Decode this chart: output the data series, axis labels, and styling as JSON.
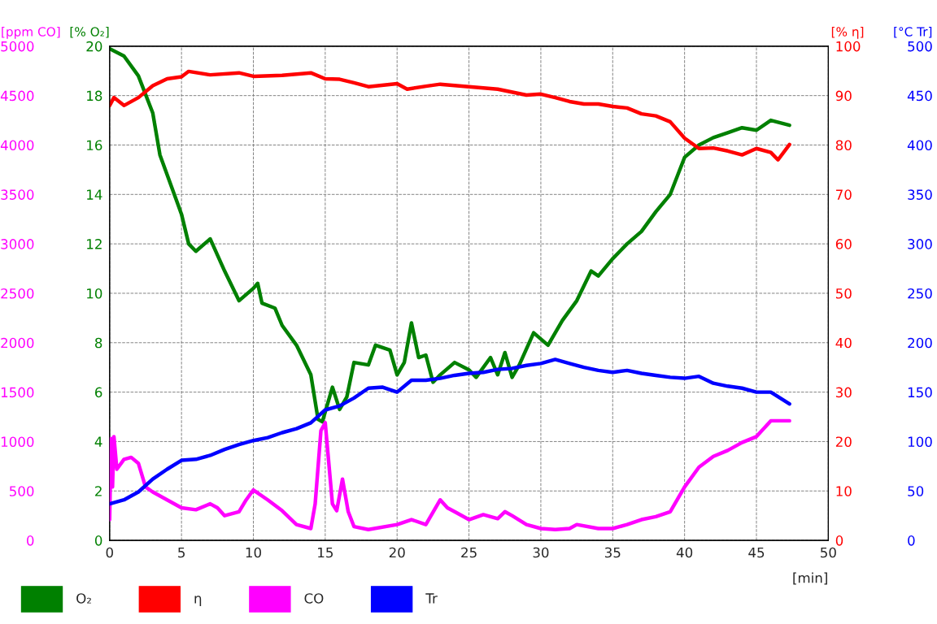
{
  "chart_data": [
    {
      "type": "line",
      "ylabel": "[% O₂]",
      "y2label": "[% η]",
      "xlabel": "[min]",
      "xlim": [
        0,
        50
      ],
      "xticks": [
        0,
        5,
        10,
        15,
        20,
        25,
        30,
        35,
        40,
        45,
        50
      ],
      "ylim": [
        0,
        20
      ],
      "yticks": [
        0,
        2,
        4,
        6,
        8,
        10,
        12,
        14,
        16,
        18,
        20
      ],
      "y2lim": [
        0,
        100
      ],
      "y2ticks": [
        0,
        10,
        20,
        30,
        40,
        50,
        60,
        70,
        80,
        90,
        100
      ],
      "grid": true,
      "legend": "bottom",
      "line_style": "solid",
      "series": [
        {
          "name": "O₂",
          "color": "#008000",
          "x": [
            0,
            1,
            2,
            3,
            3.5,
            4,
            5,
            5.5,
            6,
            7,
            8,
            9,
            10,
            10.3,
            10.6,
            11.5,
            12,
            13,
            14,
            14.5,
            14.8,
            15.5,
            16,
            16.5,
            17,
            18,
            18.5,
            19.5,
            20,
            20.5,
            21,
            21.5,
            22,
            22.5,
            23,
            24,
            25,
            25.5,
            26.5,
            27,
            27.5,
            28,
            28.5,
            29.5,
            30.5,
            31.5,
            32.5,
            33.5,
            34,
            35,
            36,
            37,
            38,
            39,
            40,
            41,
            42,
            43,
            44,
            45,
            46,
            47.3
          ],
          "values": [
            19.9,
            19.6,
            18.8,
            17.3,
            15.6,
            14.8,
            13.2,
            12.0,
            11.7,
            12.2,
            10.9,
            9.7,
            10.2,
            10.4,
            9.6,
            9.4,
            8.7,
            7.9,
            6.7,
            4.9,
            4.8,
            6.2,
            5.3,
            5.8,
            7.2,
            7.1,
            7.9,
            7.7,
            6.7,
            7.2,
            8.8,
            7.4,
            7.5,
            6.4,
            6.7,
            7.2,
            6.9,
            6.6,
            7.4,
            6.7,
            7.6,
            6.6,
            7.1,
            8.4,
            7.9,
            8.9,
            9.7,
            10.9,
            10.7,
            11.4,
            12.0,
            12.5,
            13.3,
            14.0,
            15.5,
            16.0,
            16.3,
            16.5,
            16.7,
            16.6,
            17.0,
            16.8
          ]
        },
        {
          "name": "η",
          "color": "#ff0000",
          "axis": "y2",
          "x": [
            0,
            0.3,
            1,
            2,
            3,
            4,
            5,
            5.5,
            7,
            9,
            10,
            12,
            14,
            15,
            16,
            17,
            18,
            20,
            20.7,
            22,
            23,
            25,
            27,
            29,
            30,
            31,
            32,
            33,
            34,
            35,
            36,
            37,
            38,
            39,
            40,
            41,
            42,
            43,
            44,
            45,
            46,
            46.5,
            47.3
          ],
          "values": [
            88,
            89.6,
            88,
            89.6,
            92,
            93.4,
            93.8,
            94.9,
            94.2,
            94.6,
            93.9,
            94.1,
            94.6,
            93.4,
            93.3,
            92.6,
            91.8,
            92.4,
            91.3,
            91.9,
            92.3,
            91.8,
            91.3,
            90.1,
            90.3,
            89.6,
            88.8,
            88.3,
            88.3,
            87.8,
            87.5,
            86.3,
            85.9,
            84.7,
            81.4,
            79.3,
            79.4,
            78.8,
            78.0,
            79.3,
            78.5,
            77.0,
            80.1
          ]
        }
      ]
    },
    {
      "type": "line",
      "ylabel": "[ppm CO]",
      "y2label": "[°C Tr]",
      "xlim": [
        0,
        50
      ],
      "tick_labels": "y",
      "ylim": [
        0,
        5000
      ],
      "yticks": [
        0,
        500,
        1000,
        1500,
        2000,
        2500,
        3000,
        3500,
        4000,
        4500,
        5000
      ],
      "y2lim": [
        0,
        500
      ],
      "y2ticks": [
        0,
        50,
        100,
        150,
        200,
        250,
        300,
        350,
        400,
        450,
        500
      ],
      "legend": "bottom",
      "line_style": "solid",
      "series": [
        {
          "name": "CO",
          "color": "#ff00ff",
          "x": [
            0,
            0.1,
            0.2,
            0.3,
            0.5,
            1,
            1.5,
            2,
            2.5,
            3,
            4,
            5,
            6,
            7,
            7.5,
            8,
            9,
            9.5,
            10,
            11,
            12,
            13,
            14,
            14.3,
            14.7,
            15,
            15.5,
            15.8,
            16.2,
            16.6,
            17,
            18,
            20,
            21,
            22,
            23,
            23.5,
            24,
            25,
            26,
            27,
            27.5,
            28,
            29,
            30,
            31,
            32,
            32.5,
            34,
            35,
            36,
            37,
            38,
            39,
            40,
            41,
            42,
            43,
            44,
            45,
            46,
            47.3
          ],
          "values": [
            210,
            1030,
            540,
            1050,
            720,
            820,
            840,
            780,
            540,
            490,
            410,
            330,
            310,
            370,
            330,
            250,
            290,
            410,
            510,
            410,
            300,
            160,
            120,
            370,
            1110,
            1190,
            370,
            300,
            620,
            290,
            140,
            110,
            160,
            210,
            160,
            410,
            330,
            290,
            210,
            260,
            220,
            290,
            250,
            160,
            120,
            110,
            120,
            160,
            120,
            120,
            160,
            210,
            240,
            290,
            540,
            740,
            850,
            910,
            990,
            1050,
            1210,
            1210
          ]
        },
        {
          "name": "Tr",
          "color": "#0000ff",
          "axis": "y2",
          "x": [
            0,
            1,
            2,
            3,
            4,
            5,
            6,
            7,
            8,
            9,
            10,
            11,
            12,
            13,
            14,
            15,
            16,
            17,
            18,
            19,
            20,
            21,
            22,
            23,
            24,
            25,
            26,
            27,
            28,
            29,
            30,
            31,
            32,
            33,
            34,
            35,
            36,
            37,
            38,
            39,
            40,
            41,
            42,
            43,
            44,
            45,
            46,
            47.3
          ],
          "values": [
            37,
            41,
            49,
            62,
            72,
            81,
            82,
            86,
            92,
            97,
            101,
            104,
            109,
            113,
            119,
            132,
            136,
            144,
            154,
            155,
            150,
            162,
            162,
            164,
            167,
            169,
            170,
            173,
            174,
            177,
            179,
            183,
            179,
            175,
            172,
            170,
            172,
            169,
            167,
            165,
            164,
            166,
            159,
            156,
            154,
            150,
            150,
            138
          ]
        }
      ]
    }
  ]
}
